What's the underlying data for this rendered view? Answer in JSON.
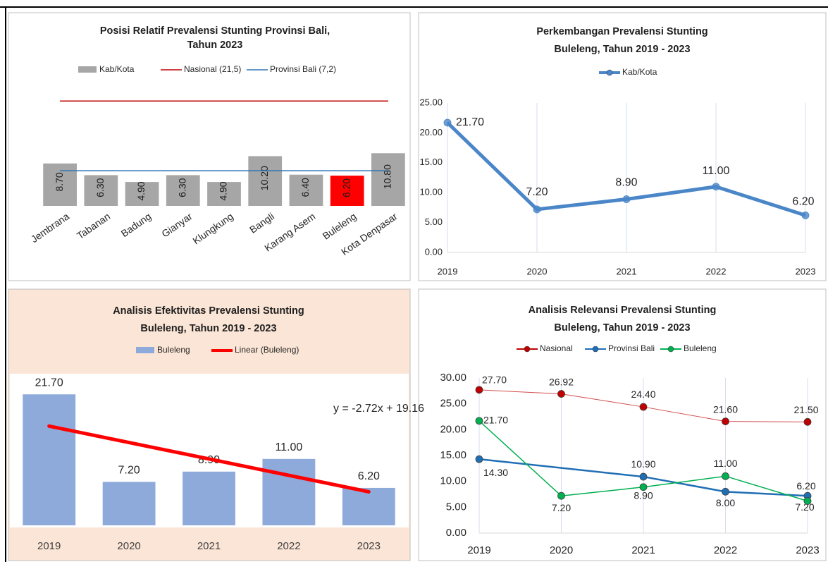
{
  "chart_data": [
    {
      "type": "bar",
      "title": [
        "Posisi Relatif Prevalensi Stunting Provinsi Bali,",
        "Tahun 2023"
      ],
      "categories": [
        "Jembrana",
        "Tabanan",
        "Badung",
        "Gianyar",
        "Klungkung",
        "Bangli",
        "Karang Asem",
        "Buleleng",
        "Kota Denpasar"
      ],
      "series": [
        {
          "name": "Kab/Kota",
          "type": "bar",
          "color": "#a6a6a6",
          "colors": [
            "#a6a6a6",
            "#a6a6a6",
            "#a6a6a6",
            "#a6a6a6",
            "#a6a6a6",
            "#a6a6a6",
            "#a6a6a6",
            "#ff0000",
            "#a6a6a6"
          ],
          "values": [
            8.7,
            6.3,
            4.9,
            6.3,
            4.9,
            10.2,
            6.4,
            6.2,
            10.8
          ],
          "value_labels": [
            "8.70",
            "6.30",
            "4.90",
            "6.30",
            "4.90",
            "10.20",
            "6.40",
            "6.20",
            "10.80"
          ]
        },
        {
          "name": "Nasional (21,5)",
          "type": "line",
          "color": "#c00000",
          "values": [
            21.5,
            21.5,
            21.5,
            21.5,
            21.5,
            21.5,
            21.5,
            21.5,
            21.5
          ]
        },
        {
          "name": "Provinsi Bali (7,2)",
          "type": "line",
          "color": "#2e75b6",
          "values": [
            7.2,
            7.2,
            7.2,
            7.2,
            7.2,
            7.2,
            7.2,
            7.2,
            7.2
          ]
        }
      ],
      "ylim": [
        0,
        25
      ]
    },
    {
      "type": "line",
      "title": [
        "Perkembangan Prevalensi Stunting",
        "Buleleng, Tahun 2019 - 2023"
      ],
      "x": [
        2019,
        2020,
        2021,
        2022,
        2023
      ],
      "xlim": [
        2019,
        2023
      ],
      "xticks": [
        2019,
        2020,
        2021,
        2022,
        2023
      ],
      "series": [
        {
          "name": "Kab/Kota",
          "color": "#4a86c8",
          "values": [
            21.7,
            7.2,
            8.9,
            11.0,
            6.2
          ],
          "value_labels": [
            "21.70",
            "7.20",
            "8.90",
            "11.00",
            "6.20"
          ]
        }
      ],
      "ylim": [
        0,
        25
      ],
      "yticks": [
        {
          "value": 0,
          "label": "0.00"
        },
        {
          "value": 5,
          "label": "5.00"
        },
        {
          "value": 10,
          "label": "10.00"
        },
        {
          "value": 15,
          "label": "15.00"
        },
        {
          "value": 20,
          "label": "20.00"
        },
        {
          "value": 25,
          "label": "25.00"
        }
      ],
      "grid": "x"
    },
    {
      "type": "bar",
      "title": [
        "Analisis Efektivitas Prevalensi Stunting",
        "Buleleng, Tahun 2019 - 2023"
      ],
      "categories": [
        "2019",
        "2020",
        "2021",
        "2022",
        "2023"
      ],
      "series": [
        {
          "name": "Buleleng",
          "type": "bar",
          "color": "#8eaadb",
          "values": [
            21.7,
            7.2,
            8.9,
            11.0,
            6.2
          ],
          "value_labels": [
            "21.70",
            "7.20",
            "8.90",
            "11.00",
            "6.20"
          ]
        }
      ],
      "trendline": {
        "name": "Linear (Buleleng)",
        "color": "#ff0000",
        "slope": -2.72,
        "intercept": 19.16,
        "label": "y = -2.72x + 19.16"
      },
      "ylim": [
        0,
        25
      ]
    },
    {
      "type": "line",
      "title": [
        "Analisis Relevansi Prevalensi Stunting",
        "Buleleng, Tahun 2019 - 2023"
      ],
      "xlim": [
        2019,
        2023
      ],
      "xticks": [
        2019,
        2020,
        2021,
        2022,
        2023
      ],
      "series": [
        {
          "name": "Nasional",
          "color": "#c00000",
          "x": [
            2019,
            2020,
            2021,
            2022,
            2023
          ],
          "values": [
            27.7,
            26.92,
            24.4,
            21.6,
            21.5
          ],
          "value_labels": [
            "27.70",
            "26.92",
            "24.40",
            "21.60",
            "21.50"
          ]
        },
        {
          "name": "Provinsi Bali",
          "color": "#1f6fb5",
          "x": [
            2019,
            2021,
            2022,
            2023
          ],
          "values": [
            14.3,
            10.9,
            8.0,
            7.2
          ],
          "value_labels": [
            "14.30",
            "10.90",
            "8.00",
            "7.20"
          ]
        },
        {
          "name": "Buleleng",
          "color": "#00b050",
          "x": [
            2019,
            2020,
            2021,
            2022,
            2023
          ],
          "values": [
            21.7,
            7.2,
            8.9,
            11.0,
            6.2
          ],
          "value_labels": [
            "21.70",
            "7.20",
            "8.90",
            "11.00",
            "6.20"
          ]
        }
      ],
      "ylim": [
        0,
        30
      ],
      "yticks": [
        {
          "value": 0,
          "label": "0.00"
        },
        {
          "value": 5,
          "label": "5.00"
        },
        {
          "value": 10,
          "label": "10.00"
        },
        {
          "value": 15,
          "label": "15.00"
        },
        {
          "value": 20,
          "label": "20.00"
        },
        {
          "value": 25,
          "label": "25.00"
        },
        {
          "value": 30,
          "label": "30.00"
        }
      ],
      "grid": "x"
    }
  ]
}
